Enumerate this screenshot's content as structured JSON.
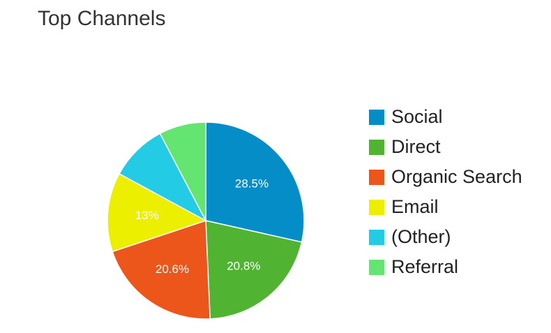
{
  "title": "Top Channels",
  "chart_data": {
    "type": "pie",
    "title": "Top Channels",
    "slices": [
      {
        "label": "Social",
        "value": 28.5,
        "display": "28.5%",
        "color": "#058DC7"
      },
      {
        "label": "Direct",
        "value": 20.8,
        "display": "20.8%",
        "color": "#50B432"
      },
      {
        "label": "Organic Search",
        "value": 20.6,
        "display": "20.6%",
        "color": "#ED561B"
      },
      {
        "label": "Email",
        "value": 13,
        "display": "13%",
        "color": "#EDEF00"
      },
      {
        "label": "(Other)",
        "value": 9.4,
        "display": "",
        "color": "#24CBE5"
      },
      {
        "label": "Referral",
        "value": 7.7,
        "display": "",
        "color": "#64E572"
      }
    ],
    "legend_position": "right"
  }
}
